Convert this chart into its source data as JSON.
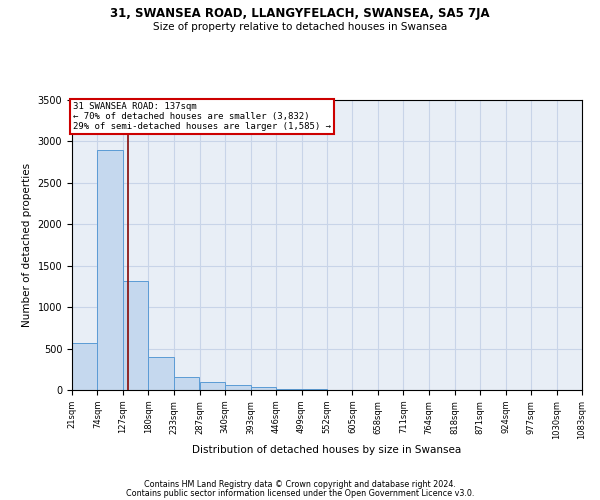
{
  "title1": "31, SWANSEA ROAD, LLANGYFELACH, SWANSEA, SA5 7JA",
  "title2": "Size of property relative to detached houses in Swansea",
  "xlabel": "Distribution of detached houses by size in Swansea",
  "ylabel": "Number of detached properties",
  "bar_color": "#c5d8ee",
  "bar_edge_color": "#5b9bd5",
  "grid_color": "#c8d4e8",
  "background_color": "#e8eef6",
  "annotation_box_color": "#cc0000",
  "vline_color": "#8b1a1a",
  "vline_x": 137,
  "bin_edges": [
    21,
    74,
    127,
    180,
    233,
    287,
    340,
    393,
    446,
    499,
    552,
    605,
    658,
    711,
    764,
    818,
    871,
    924,
    977,
    1030,
    1083
  ],
  "bar_heights": [
    570,
    2900,
    1310,
    400,
    155,
    95,
    60,
    35,
    18,
    10,
    6,
    4,
    2,
    2,
    1,
    1,
    1,
    0,
    0,
    0
  ],
  "annotation_text": "31 SWANSEA ROAD: 137sqm\n← 70% of detached houses are smaller (3,832)\n29% of semi-detached houses are larger (1,585) →",
  "footer1": "Contains HM Land Registry data © Crown copyright and database right 2024.",
  "footer2": "Contains public sector information licensed under the Open Government Licence v3.0.",
  "ylim": [
    0,
    3500
  ],
  "tick_labels": [
    "21sqm",
    "74sqm",
    "127sqm",
    "180sqm",
    "233sqm",
    "287sqm",
    "340sqm",
    "393sqm",
    "446sqm",
    "499sqm",
    "552sqm",
    "605sqm",
    "658sqm",
    "711sqm",
    "764sqm",
    "818sqm",
    "871sqm",
    "924sqm",
    "977sqm",
    "1030sqm",
    "1083sqm"
  ]
}
